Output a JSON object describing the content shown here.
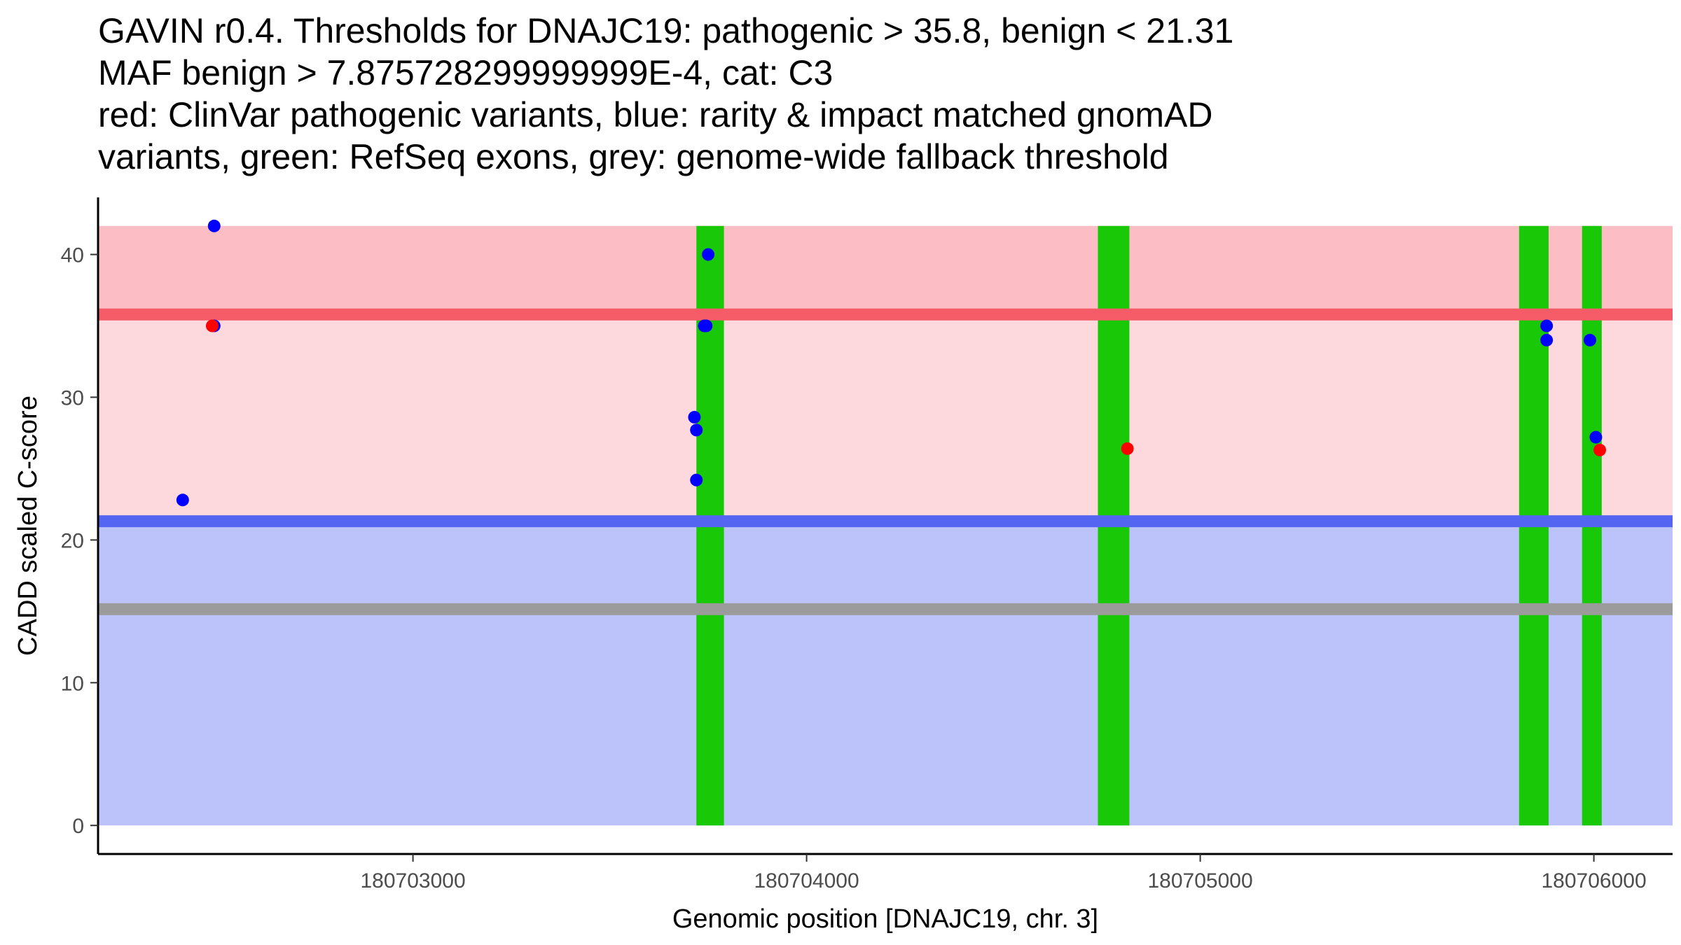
{
  "chart_data": {
    "type": "scatter",
    "title_lines": [
      "GAVIN r0.4. Thresholds for DNAJC19: pathogenic > 35.8, benign < 21.31",
      "MAF benign > 7.875728299999999E-4, cat: C3",
      "red: ClinVar pathogenic variants, blue: rarity & impact matched gnomAD",
      "variants, green: RefSeq exons, grey: genome-wide fallback threshold"
    ],
    "xlabel": "Genomic position [DNAJC19, chr. 3]",
    "ylabel": "CADD scaled C-score",
    "xlim": [
      180702200,
      180706200
    ],
    "ylim": [
      -2,
      44
    ],
    "x_ticks": [
      180703000,
      180704000,
      180705000,
      180706000
    ],
    "y_ticks": [
      0,
      10,
      20,
      30,
      40
    ],
    "thresholds": {
      "pathogenic": 35.8,
      "benign": 21.31,
      "fallback": 15.15,
      "max": 42
    },
    "colors": {
      "pathogenic_region": "#fdd9dd",
      "pathogenic_top_region": "#fdbdc4",
      "benign_region": "#bcc2fa",
      "pathogenic_line": "#f65c67",
      "benign_line": "#5466f1",
      "fallback_line": "#9b9b9b",
      "exon": "#19c908",
      "clinvar_point": "#ff0000",
      "gnomad_point": "#0000ff"
    },
    "exons": [
      {
        "start": 180703720,
        "end": 180703790
      },
      {
        "start": 180704740,
        "end": 180704820
      },
      {
        "start": 180705810,
        "end": 180705885
      },
      {
        "start": 180705970,
        "end": 180706020
      }
    ],
    "series": [
      {
        "name": "gnomAD variants",
        "color": "#0000ff",
        "points": [
          {
            "x": 180702415,
            "y": 22.8
          },
          {
            "x": 180702495,
            "y": 42.0
          },
          {
            "x": 180702495,
            "y": 35.0
          },
          {
            "x": 180703715,
            "y": 28.6
          },
          {
            "x": 180703720,
            "y": 27.7
          },
          {
            "x": 180703720,
            "y": 24.2
          },
          {
            "x": 180703740,
            "y": 35.0
          },
          {
            "x": 180703745,
            "y": 35.0
          },
          {
            "x": 180703750,
            "y": 40.0
          },
          {
            "x": 180705880,
            "y": 35.0
          },
          {
            "x": 180705880,
            "y": 34.0
          },
          {
            "x": 180705990,
            "y": 34.0
          },
          {
            "x": 180706005,
            "y": 27.2
          }
        ]
      },
      {
        "name": "ClinVar pathogenic variants",
        "color": "#ff0000",
        "points": [
          {
            "x": 180702490,
            "y": 35.0
          },
          {
            "x": 180704815,
            "y": 26.4
          },
          {
            "x": 180706015,
            "y": 26.3
          }
        ]
      }
    ]
  }
}
